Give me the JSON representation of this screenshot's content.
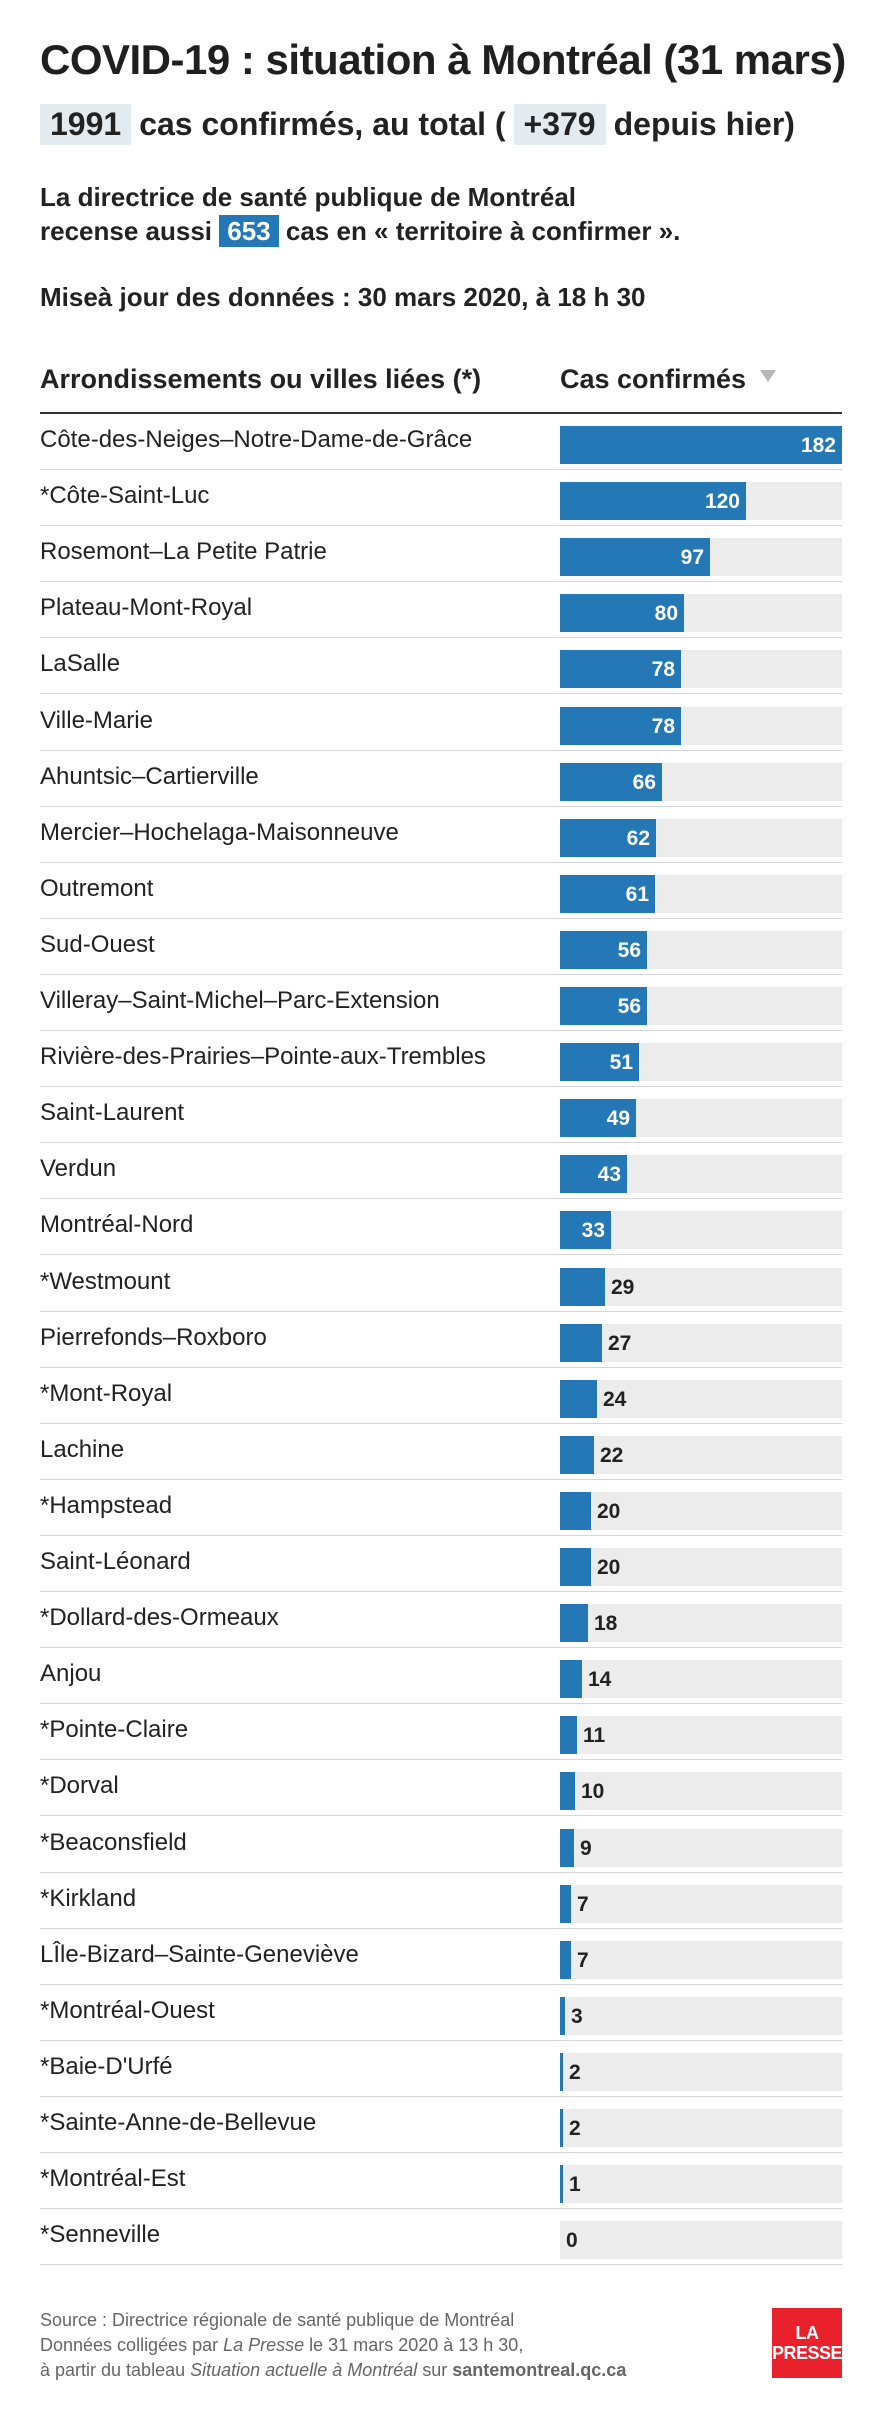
{
  "header": {
    "title": "COVID-19 : situation à Montréal (31 mars)",
    "total_cases": "1991",
    "total_text": "cas confirmés, au total (",
    "delta": "+379",
    "delta_text": "depuis hier)",
    "para_line1": "La directrice de santé publique de Montréal",
    "para_line2_pre": "recense aussi",
    "para_value": "653",
    "para_line2_post": "cas en « territoire à confirmer ».",
    "update": "Miseà jour des données : 30 mars 2020, à 18 h 30"
  },
  "table": {
    "col_label": "Arrondissements ou villes liées (*)",
    "col_value": "Cas confirmés"
  },
  "colors": {
    "bar": "#2378b5",
    "track": "#ececec",
    "accent": "#e8212d"
  },
  "chart_data": {
    "type": "bar",
    "orientation": "horizontal",
    "xlim": [
      0,
      182
    ],
    "categories": [
      "Côte-des-Neiges–Notre-Dame-de-Grâce",
      "*Côte-Saint-Luc",
      "Rosemont–La Petite Patrie",
      "Plateau-Mont-Royal",
      "LaSalle",
      "Ville-Marie",
      "Ahuntsic–Cartierville",
      "Mercier–Hochelaga-Maisonneuve",
      "Outremont",
      "Sud-Ouest",
      "Villeray–Saint-Michel–Parc-Extension",
      "Rivière-des-Prairies–Pointe-aux-Trembles",
      "Saint-Laurent",
      "Verdun",
      "Montréal-Nord",
      "*Westmount",
      "Pierrefonds–Roxboro",
      "*Mont-Royal",
      "Lachine",
      "*Hampstead",
      "Saint-Léonard",
      "*Dollard-des-Ormeaux",
      "Anjou",
      "*Pointe-Claire",
      "*Dorval",
      "*Beaconsfield",
      "*Kirkland",
      "LÎle-Bizard–Sainte-Geneviève",
      "*Montréal-Ouest",
      "*Baie-D'Urfé",
      "*Sainte-Anne-de-Bellevue",
      "*Montréal-Est",
      "*Senneville"
    ],
    "values": [
      182,
      120,
      97,
      80,
      78,
      78,
      66,
      62,
      61,
      56,
      56,
      51,
      49,
      43,
      33,
      29,
      27,
      24,
      22,
      20,
      20,
      18,
      14,
      11,
      10,
      9,
      7,
      7,
      3,
      2,
      2,
      1,
      0
    ]
  },
  "footer": {
    "line1": "Source : Directrice régionale de santé publique de Montréal",
    "line2_pre": "Données colligées par ",
    "line2_em": "La Presse",
    "line2_post": " le 31 mars 2020 à 13 h 30,",
    "line3_pre": "à partir du tableau ",
    "line3_em": "Situation actuelle à Montréal",
    "line3_mid": " sur ",
    "line3_site": "santemontreal.qc.ca",
    "logo_line1": "LA",
    "logo_line2": "PRESSE"
  }
}
